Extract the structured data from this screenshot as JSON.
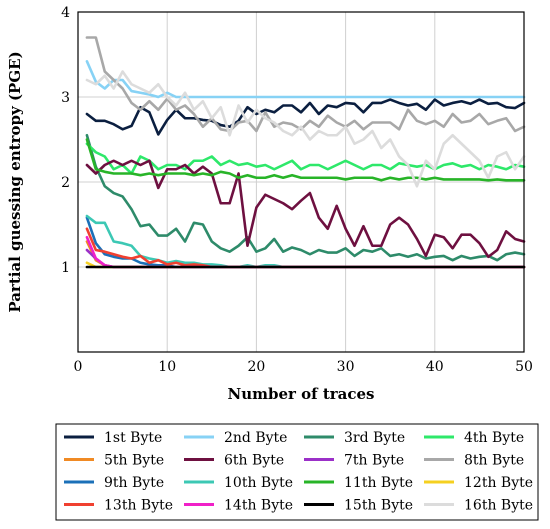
{
  "chart_data": {
    "type": "line",
    "xlabel": "Number of traces",
    "ylabel": "Partial guessing entropy (PGE)",
    "xlim": [
      0,
      50
    ],
    "ylim": [
      0,
      4
    ],
    "x_ticks": [
      0,
      10,
      20,
      30,
      40,
      50
    ],
    "y_ticks": [
      1,
      2,
      3,
      4
    ],
    "grid": true,
    "legend_placement": "bottom",
    "x": [
      1,
      2,
      3,
      4,
      5,
      6,
      7,
      8,
      9,
      10,
      11,
      12,
      13,
      14,
      15,
      16,
      17,
      18,
      19,
      20,
      21,
      22,
      23,
      24,
      25,
      26,
      27,
      28,
      29,
      30,
      31,
      32,
      33,
      34,
      35,
      36,
      37,
      38,
      39,
      40,
      41,
      42,
      43,
      44,
      45,
      46,
      47,
      48,
      49,
      50
    ],
    "series": [
      {
        "name": "1st Byte",
        "color": "#0b1f40",
        "values": [
          2.8,
          2.72,
          2.72,
          2.68,
          2.62,
          2.66,
          2.88,
          2.82,
          2.56,
          2.73,
          2.85,
          2.75,
          2.75,
          2.73,
          2.72,
          2.67,
          2.65,
          2.72,
          2.88,
          2.8,
          2.85,
          2.82,
          2.9,
          2.9,
          2.82,
          2.93,
          2.8,
          2.9,
          2.88,
          2.93,
          2.92,
          2.82,
          2.93,
          2.93,
          2.97,
          2.93,
          2.9,
          2.92,
          2.85,
          2.97,
          2.9,
          2.93,
          2.95,
          2.92,
          2.97,
          2.92,
          2.93,
          2.88,
          2.87,
          2.93
        ]
      },
      {
        "name": "2nd Byte",
        "color": "#87d2f5",
        "values": [
          3.42,
          3.18,
          3.1,
          3.2,
          3.2,
          3.07,
          3.05,
          3.03,
          3.0,
          3.05,
          3.0,
          3.0,
          3.0,
          3.0,
          3.0,
          3.0,
          3.0,
          3.0,
          3.0,
          3.0,
          3.0,
          3.0,
          3.0,
          3.0,
          3.0,
          3.0,
          3.0,
          3.0,
          3.0,
          3.0,
          3.0,
          3.0,
          3.0,
          3.0,
          3.0,
          3.0,
          3.0,
          3.0,
          3.0,
          3.0,
          3.0,
          3.0,
          3.0,
          3.0,
          3.0,
          3.0,
          3.0,
          3.0,
          3.0,
          3.0
        ]
      },
      {
        "name": "3rd Byte",
        "color": "#2e8b6a",
        "values": [
          2.55,
          2.18,
          1.95,
          1.87,
          1.83,
          1.68,
          1.48,
          1.5,
          1.37,
          1.37,
          1.45,
          1.3,
          1.52,
          1.5,
          1.3,
          1.22,
          1.18,
          1.25,
          1.35,
          1.18,
          1.22,
          1.33,
          1.18,
          1.23,
          1.2,
          1.15,
          1.2,
          1.17,
          1.17,
          1.22,
          1.13,
          1.2,
          1.18,
          1.22,
          1.13,
          1.15,
          1.12,
          1.15,
          1.1,
          1.12,
          1.13,
          1.08,
          1.13,
          1.1,
          1.12,
          1.13,
          1.08,
          1.15,
          1.17,
          1.15
        ]
      },
      {
        "name": "4th Byte",
        "color": "#2ee86a",
        "values": [
          2.45,
          2.35,
          2.3,
          2.15,
          2.2,
          2.1,
          2.3,
          2.25,
          2.15,
          2.2,
          2.2,
          2.15,
          2.25,
          2.25,
          2.3,
          2.2,
          2.25,
          2.2,
          2.22,
          2.18,
          2.2,
          2.15,
          2.2,
          2.25,
          2.15,
          2.2,
          2.2,
          2.15,
          2.2,
          2.25,
          2.2,
          2.15,
          2.2,
          2.2,
          2.15,
          2.22,
          2.2,
          2.18,
          2.2,
          2.15,
          2.2,
          2.22,
          2.18,
          2.2,
          2.15,
          2.2,
          2.18,
          2.15,
          2.2,
          2.18
        ]
      },
      {
        "name": "5th Byte",
        "color": "#f08a24",
        "values": [
          1.3,
          1.08,
          1.02,
          1.0,
          1.0,
          1.0,
          1.0,
          1.0,
          1.0,
          1.0,
          1.0,
          1.0,
          1.0,
          1.0,
          1.0,
          1.0,
          1.0,
          1.0,
          1.0,
          1.0,
          1.0,
          1.0,
          1.0,
          1.0,
          1.0,
          1.0,
          1.0,
          1.0,
          1.0,
          1.0,
          1.0,
          1.0,
          1.0,
          1.0,
          1.0,
          1.0,
          1.0,
          1.0,
          1.0,
          1.0,
          1.0,
          1.0,
          1.0,
          1.0,
          1.0,
          1.0,
          1.0,
          1.0,
          1.0,
          1.0
        ]
      },
      {
        "name": "6th Byte",
        "color": "#6e1040",
        "values": [
          2.2,
          2.1,
          2.2,
          2.25,
          2.2,
          2.25,
          2.2,
          2.25,
          1.93,
          2.15,
          2.15,
          2.2,
          2.1,
          2.18,
          2.1,
          1.75,
          1.75,
          2.1,
          1.25,
          1.7,
          1.85,
          1.8,
          1.75,
          1.68,
          1.78,
          1.87,
          1.58,
          1.45,
          1.72,
          1.45,
          1.25,
          1.48,
          1.25,
          1.25,
          1.5,
          1.58,
          1.5,
          1.33,
          1.13,
          1.38,
          1.35,
          1.22,
          1.38,
          1.38,
          1.28,
          1.12,
          1.2,
          1.42,
          1.33,
          1.3
        ]
      },
      {
        "name": "7th Byte",
        "color": "#9b30c8",
        "values": [
          1.2,
          1.1,
          1.02,
          1.0,
          1.0,
          1.0,
          1.0,
          1.0,
          1.0,
          1.0,
          1.0,
          1.0,
          1.0,
          1.0,
          1.0,
          1.0,
          1.0,
          1.0,
          1.0,
          1.0,
          1.0,
          1.0,
          1.0,
          1.0,
          1.0,
          1.0,
          1.0,
          1.0,
          1.0,
          1.0,
          1.0,
          1.0,
          1.0,
          1.0,
          1.0,
          1.0,
          1.0,
          1.0,
          1.0,
          1.0,
          1.0,
          1.0,
          1.0,
          1.0,
          1.0,
          1.0,
          1.0,
          1.0,
          1.0,
          1.0
        ]
      },
      {
        "name": "8th Byte",
        "color": "#a8a8a8",
        "values": [
          3.7,
          3.7,
          3.3,
          3.2,
          3.1,
          2.93,
          2.85,
          2.95,
          2.85,
          2.98,
          2.85,
          2.9,
          2.8,
          2.65,
          2.75,
          2.62,
          2.6,
          2.7,
          2.72,
          2.6,
          2.82,
          2.65,
          2.7,
          2.68,
          2.62,
          2.72,
          2.65,
          2.78,
          2.7,
          2.65,
          2.72,
          2.62,
          2.7,
          2.7,
          2.7,
          2.62,
          2.85,
          2.72,
          2.68,
          2.72,
          2.65,
          2.8,
          2.7,
          2.72,
          2.8,
          2.68,
          2.72,
          2.75,
          2.6,
          2.65
        ]
      },
      {
        "name": "9th Byte",
        "color": "#1b70b8",
        "values": [
          1.58,
          1.28,
          1.15,
          1.12,
          1.1,
          1.1,
          1.05,
          1.03,
          1.02,
          1.02,
          1.0,
          1.0,
          1.0,
          1.0,
          1.0,
          1.0,
          1.0,
          1.0,
          1.0,
          1.0,
          1.0,
          1.0,
          1.0,
          1.0,
          1.0,
          1.0,
          1.0,
          1.0,
          1.0,
          1.0,
          1.0,
          1.0,
          1.0,
          1.0,
          1.0,
          1.0,
          1.0,
          1.0,
          1.0,
          1.0,
          1.0,
          1.0,
          1.0,
          1.0,
          1.0,
          1.0,
          1.0,
          1.0,
          1.0,
          1.0
        ]
      },
      {
        "name": "10th Byte",
        "color": "#3cc8b4",
        "values": [
          1.6,
          1.52,
          1.52,
          1.3,
          1.28,
          1.25,
          1.13,
          1.1,
          1.08,
          1.05,
          1.07,
          1.05,
          1.05,
          1.03,
          1.03,
          1.02,
          1.0,
          1.0,
          1.02,
          1.0,
          1.02,
          1.02,
          1.0,
          1.0,
          1.0,
          1.0,
          1.0,
          1.0,
          1.0,
          1.0,
          1.0,
          1.0,
          1.0,
          1.0,
          1.0,
          1.0,
          1.0,
          1.0,
          1.0,
          1.0,
          1.0,
          1.0,
          1.0,
          1.0,
          1.0,
          1.0,
          1.0,
          1.0,
          1.0,
          1.0
        ]
      },
      {
        "name": "11th Byte",
        "color": "#28b428",
        "values": [
          2.5,
          2.15,
          2.12,
          2.1,
          2.1,
          2.1,
          2.08,
          2.1,
          2.08,
          2.1,
          2.1,
          2.1,
          2.08,
          2.1,
          2.08,
          2.12,
          2.1,
          2.05,
          2.08,
          2.05,
          2.05,
          2.08,
          2.05,
          2.08,
          2.05,
          2.05,
          2.05,
          2.05,
          2.05,
          2.03,
          2.05,
          2.05,
          2.05,
          2.02,
          2.05,
          2.03,
          2.05,
          2.05,
          2.03,
          2.05,
          2.03,
          2.03,
          2.03,
          2.03,
          2.03,
          2.02,
          2.03,
          2.02,
          2.02,
          2.02
        ]
      },
      {
        "name": "12th Byte",
        "color": "#f5d020",
        "values": [
          1.05,
          1.0,
          1.0,
          1.0,
          1.0,
          1.0,
          1.0,
          1.0,
          1.0,
          1.0,
          1.0,
          1.0,
          1.0,
          1.0,
          1.0,
          1.0,
          1.0,
          1.0,
          1.0,
          1.0,
          1.0,
          1.0,
          1.0,
          1.0,
          1.0,
          1.0,
          1.0,
          1.0,
          1.0,
          1.0,
          1.0,
          1.0,
          1.0,
          1.0,
          1.0,
          1.0,
          1.0,
          1.0,
          1.0,
          1.0,
          1.0,
          1.0,
          1.0,
          1.0,
          1.0,
          1.0,
          1.0,
          1.0,
          1.0,
          1.0
        ]
      },
      {
        "name": "13th Byte",
        "color": "#f04030",
        "values": [
          1.45,
          1.2,
          1.18,
          1.15,
          1.12,
          1.1,
          1.13,
          1.05,
          1.08,
          1.03,
          1.05,
          1.02,
          1.03,
          1.02,
          1.0,
          1.0,
          1.0,
          1.0,
          1.0,
          1.0,
          1.0,
          1.0,
          1.0,
          1.0,
          1.0,
          1.0,
          1.0,
          1.0,
          1.0,
          1.0,
          1.0,
          1.0,
          1.0,
          1.0,
          1.0,
          1.0,
          1.0,
          1.0,
          1.0,
          1.0,
          1.0,
          1.0,
          1.0,
          1.0,
          1.0,
          1.0,
          1.0,
          1.0,
          1.0,
          1.0
        ]
      },
      {
        "name": "14th Byte",
        "color": "#f020c8",
        "values": [
          1.35,
          1.1,
          1.02,
          1.0,
          1.0,
          1.0,
          1.0,
          1.0,
          1.0,
          1.0,
          1.0,
          1.0,
          1.0,
          1.0,
          1.0,
          1.0,
          1.0,
          1.0,
          1.0,
          1.0,
          1.0,
          1.0,
          1.0,
          1.0,
          1.0,
          1.0,
          1.0,
          1.0,
          1.0,
          1.0,
          1.0,
          1.0,
          1.0,
          1.0,
          1.0,
          1.0,
          1.0,
          1.0,
          1.0,
          1.0,
          1.0,
          1.0,
          1.0,
          1.0,
          1.0,
          1.0,
          1.0,
          1.0,
          1.0,
          1.0
        ]
      },
      {
        "name": "15th Byte",
        "color": "#000000",
        "values": [
          1.0,
          1.0,
          1.0,
          1.0,
          1.0,
          1.0,
          1.0,
          1.0,
          1.0,
          1.0,
          1.0,
          1.0,
          1.0,
          1.0,
          1.0,
          1.0,
          1.0,
          1.0,
          1.0,
          1.0,
          1.0,
          1.0,
          1.0,
          1.0,
          1.0,
          1.0,
          1.0,
          1.0,
          1.0,
          1.0,
          1.0,
          1.0,
          1.0,
          1.0,
          1.0,
          1.0,
          1.0,
          1.0,
          1.0,
          1.0,
          1.0,
          1.0,
          1.0,
          1.0,
          1.0,
          1.0,
          1.0,
          1.0,
          1.0,
          1.0
        ]
      },
      {
        "name": "16th Byte",
        "color": "#dcdcdc",
        "values": [
          3.2,
          3.15,
          3.25,
          3.1,
          3.3,
          3.15,
          3.1,
          3.05,
          3.15,
          3.0,
          2.9,
          3.05,
          2.85,
          2.95,
          2.75,
          2.88,
          2.55,
          2.9,
          2.7,
          2.85,
          2.75,
          2.7,
          2.6,
          2.55,
          2.65,
          2.5,
          2.6,
          2.55,
          2.55,
          2.65,
          2.45,
          2.5,
          2.6,
          2.4,
          2.5,
          2.3,
          2.2,
          1.95,
          2.25,
          2.15,
          2.45,
          2.55,
          2.45,
          2.35,
          2.25,
          2.05,
          2.3,
          2.35,
          2.15,
          2.3
        ]
      }
    ]
  }
}
